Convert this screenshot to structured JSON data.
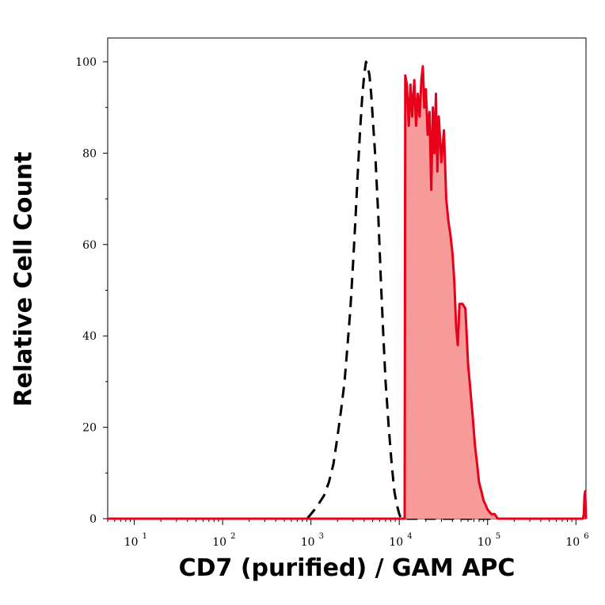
{
  "chart_data": {
    "type": "area",
    "xlabel": "CD7 (purified) / GAM APC",
    "ylabel": "Relative Cell Count",
    "x_scale": "log",
    "xlim": [
      5,
      1300000
    ],
    "ylim": [
      0,
      100
    ],
    "x_ticks": [
      {
        "value": 10,
        "base": "10",
        "exp": "1"
      },
      {
        "value": 100,
        "base": "10",
        "exp": "2"
      },
      {
        "value": 1000,
        "base": "10",
        "exp": "3"
      },
      {
        "value": 10000,
        "base": "10",
        "exp": "4"
      },
      {
        "value": 100000,
        "base": "10",
        "exp": "5"
      },
      {
        "value": 1000000,
        "base": "10",
        "exp": "6"
      }
    ],
    "y_ticks": [
      0,
      20,
      40,
      60,
      80,
      100
    ],
    "grid": false,
    "series": [
      {
        "style": "dashed",
        "color": "#000000",
        "fill": "none",
        "points": [
          [
            5,
            0
          ],
          [
            900,
            0
          ],
          [
            1000,
            1
          ],
          [
            1100,
            2
          ],
          [
            1200,
            3
          ],
          [
            1400,
            5
          ],
          [
            1600,
            8
          ],
          [
            1800,
            12
          ],
          [
            2000,
            18
          ],
          [
            2200,
            24
          ],
          [
            2400,
            30
          ],
          [
            2600,
            38
          ],
          [
            2800,
            46
          ],
          [
            3000,
            56
          ],
          [
            3200,
            66
          ],
          [
            3400,
            76
          ],
          [
            3600,
            85
          ],
          [
            3800,
            92
          ],
          [
            4000,
            97
          ],
          [
            4200,
            100
          ],
          [
            4400,
            99
          ],
          [
            4600,
            97
          ],
          [
            4800,
            93
          ],
          [
            5000,
            88
          ],
          [
            5400,
            78
          ],
          [
            5800,
            66
          ],
          [
            6200,
            52
          ],
          [
            6600,
            40
          ],
          [
            7000,
            30
          ],
          [
            7600,
            20
          ],
          [
            8200,
            12
          ],
          [
            8800,
            6
          ],
          [
            9400,
            3
          ],
          [
            10000,
            1
          ],
          [
            10500,
            0
          ],
          [
            1300000,
            0
          ]
        ]
      },
      {
        "style": "solid",
        "color": "#e8001a",
        "fill": "#f79a9a",
        "points": [
          [
            5,
            0
          ],
          [
            11500,
            0
          ],
          [
            11600,
            50
          ],
          [
            11700,
            97
          ],
          [
            12200,
            95
          ],
          [
            12800,
            86
          ],
          [
            13400,
            95
          ],
          [
            14000,
            88
          ],
          [
            14800,
            96
          ],
          [
            15500,
            86
          ],
          [
            16200,
            93
          ],
          [
            17000,
            88
          ],
          [
            17800,
            96
          ],
          [
            18500,
            99
          ],
          [
            19200,
            90
          ],
          [
            20000,
            94
          ],
          [
            21000,
            84
          ],
          [
            22000,
            89
          ],
          [
            23000,
            72
          ],
          [
            24000,
            90
          ],
          [
            25000,
            80
          ],
          [
            26000,
            93
          ],
          [
            27000,
            76
          ],
          [
            28000,
            88
          ],
          [
            30000,
            78
          ],
          [
            32000,
            85
          ],
          [
            34000,
            70
          ],
          [
            36000,
            65
          ],
          [
            38000,
            62
          ],
          [
            40000,
            58
          ],
          [
            42000,
            52
          ],
          [
            44000,
            42
          ],
          [
            46000,
            38
          ],
          [
            48000,
            47
          ],
          [
            52000,
            47
          ],
          [
            56000,
            46
          ],
          [
            58000,
            40
          ],
          [
            60000,
            34
          ],
          [
            64000,
            28
          ],
          [
            68000,
            22
          ],
          [
            72000,
            16
          ],
          [
            76000,
            12
          ],
          [
            80000,
            8
          ],
          [
            85000,
            6
          ],
          [
            90000,
            4
          ],
          [
            95000,
            3
          ],
          [
            100000,
            2
          ],
          [
            110000,
            1
          ],
          [
            120000,
            1
          ],
          [
            130000,
            0
          ],
          [
            1200000,
            0
          ],
          [
            1230000,
            1
          ],
          [
            1250000,
            5
          ],
          [
            1270000,
            6
          ],
          [
            1300000,
            0
          ]
        ]
      }
    ]
  }
}
